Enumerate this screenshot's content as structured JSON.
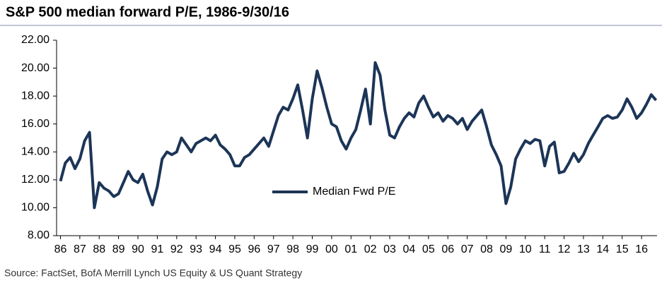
{
  "chart_data": {
    "type": "line",
    "title": "S&P 500 median forward P/E, 1986-9/30/16",
    "source": "Source: FactSet, BofA Merrill Lynch US Equity & US Quant Strategy",
    "x": [
      1986,
      1986.25,
      1986.5,
      1986.75,
      1987,
      1987.25,
      1987.5,
      1987.75,
      1988,
      1988.25,
      1988.5,
      1988.75,
      1989,
      1989.25,
      1989.5,
      1989.75,
      1990,
      1990.25,
      1990.5,
      1990.75,
      1991,
      1991.25,
      1991.5,
      1991.75,
      1992,
      1992.25,
      1992.5,
      1992.75,
      1993,
      1993.25,
      1993.5,
      1993.75,
      1994,
      1994.25,
      1994.5,
      1994.75,
      1995,
      1995.25,
      1995.5,
      1995.75,
      1996,
      1996.25,
      1996.5,
      1996.75,
      1997,
      1997.25,
      1997.5,
      1997.75,
      1998,
      1998.25,
      1998.5,
      1998.75,
      1999,
      1999.25,
      1999.5,
      1999.75,
      2000,
      2000.25,
      2000.5,
      2000.75,
      2001,
      2001.25,
      2001.5,
      2001.75,
      2002,
      2002.25,
      2002.5,
      2002.75,
      2003,
      2003.25,
      2003.5,
      2003.75,
      2004,
      2004.25,
      2004.5,
      2004.75,
      2005,
      2005.25,
      2005.5,
      2005.75,
      2006,
      2006.25,
      2006.5,
      2006.75,
      2007,
      2007.25,
      2007.5,
      2007.75,
      2008,
      2008.25,
      2008.5,
      2008.75,
      2009,
      2009.25,
      2009.5,
      2009.75,
      2010,
      2010.25,
      2010.5,
      2010.75,
      2011,
      2011.25,
      2011.5,
      2011.75,
      2012,
      2012.25,
      2012.5,
      2012.75,
      2013,
      2013.25,
      2013.5,
      2013.75,
      2014,
      2014.25,
      2014.5,
      2014.75,
      2015,
      2015.25,
      2015.5,
      2015.75,
      2016,
      2016.25,
      2016.5,
      2016.75
    ],
    "series": [
      {
        "name": "Median Fwd P/E",
        "color": "#1c3557",
        "values": [
          11.9,
          13.2,
          13.6,
          12.8,
          13.5,
          14.8,
          15.4,
          10.0,
          11.8,
          11.4,
          11.2,
          10.8,
          11.0,
          11.8,
          12.6,
          12.0,
          11.8,
          12.4,
          11.2,
          10.2,
          11.5,
          13.5,
          14.0,
          13.8,
          14.0,
          15.0,
          14.5,
          14.0,
          14.6,
          14.8,
          15.0,
          14.8,
          15.2,
          14.5,
          14.2,
          13.8,
          13.0,
          13.0,
          13.6,
          13.8,
          14.2,
          14.6,
          15.0,
          14.4,
          15.5,
          16.6,
          17.2,
          17.0,
          17.8,
          18.8,
          17.0,
          15.0,
          17.8,
          19.8,
          18.6,
          17.2,
          16.0,
          15.8,
          14.8,
          14.2,
          15.0,
          15.6,
          17.0,
          18.5,
          16.0,
          20.4,
          19.5,
          17.0,
          15.2,
          15.0,
          15.8,
          16.4,
          16.8,
          16.5,
          17.5,
          18.0,
          17.2,
          16.5,
          16.8,
          16.2,
          16.6,
          16.4,
          16.0,
          16.4,
          15.6,
          16.2,
          16.6,
          17.0,
          15.8,
          14.5,
          13.8,
          13.0,
          10.3,
          11.5,
          13.5,
          14.2,
          14.8,
          14.6,
          14.9,
          14.8,
          13.0,
          14.4,
          14.7,
          12.5,
          12.6,
          13.2,
          13.9,
          13.3,
          13.8,
          14.6,
          15.2,
          15.8,
          16.4,
          16.6,
          16.4,
          16.5,
          17.0,
          17.8,
          17.2,
          16.4,
          16.8,
          17.4,
          18.1,
          17.7
        ]
      }
    ],
    "xlim": [
      1985.8,
      2016.8
    ],
    "xticks": [
      {
        "value": 1986,
        "label": "86"
      },
      {
        "value": 1987,
        "label": "87"
      },
      {
        "value": 1988,
        "label": "88"
      },
      {
        "value": 1989,
        "label": "89"
      },
      {
        "value": 1990,
        "label": "90"
      },
      {
        "value": 1991,
        "label": "91"
      },
      {
        "value": 1992,
        "label": "92"
      },
      {
        "value": 1993,
        "label": "93"
      },
      {
        "value": 1994,
        "label": "94"
      },
      {
        "value": 1995,
        "label": "95"
      },
      {
        "value": 1996,
        "label": "96"
      },
      {
        "value": 1997,
        "label": "97"
      },
      {
        "value": 1998,
        "label": "98"
      },
      {
        "value": 1999,
        "label": "99"
      },
      {
        "value": 2000,
        "label": "00"
      },
      {
        "value": 2001,
        "label": "01"
      },
      {
        "value": 2002,
        "label": "02"
      },
      {
        "value": 2003,
        "label": "03"
      },
      {
        "value": 2004,
        "label": "04"
      },
      {
        "value": 2005,
        "label": "05"
      },
      {
        "value": 2006,
        "label": "06"
      },
      {
        "value": 2007,
        "label": "07"
      },
      {
        "value": 2008,
        "label": "08"
      },
      {
        "value": 2009,
        "label": "09"
      },
      {
        "value": 2010,
        "label": "10"
      },
      {
        "value": 2011,
        "label": "11"
      },
      {
        "value": 2012,
        "label": "12"
      },
      {
        "value": 2013,
        "label": "13"
      },
      {
        "value": 2014,
        "label": "14"
      },
      {
        "value": 2015,
        "label": "15"
      },
      {
        "value": 2016,
        "label": "16"
      }
    ],
    "ylim": [
      8,
      22
    ],
    "yticks": [
      {
        "value": 8,
        "label": "8.00"
      },
      {
        "value": 10,
        "label": "10.00"
      },
      {
        "value": 12,
        "label": "12.00"
      },
      {
        "value": 14,
        "label": "14.00"
      },
      {
        "value": 16,
        "label": "16.00"
      },
      {
        "value": 18,
        "label": "18.00"
      },
      {
        "value": 20,
        "label": "20.00"
      },
      {
        "value": 22,
        "label": "22.00"
      }
    ],
    "grid": false
  }
}
